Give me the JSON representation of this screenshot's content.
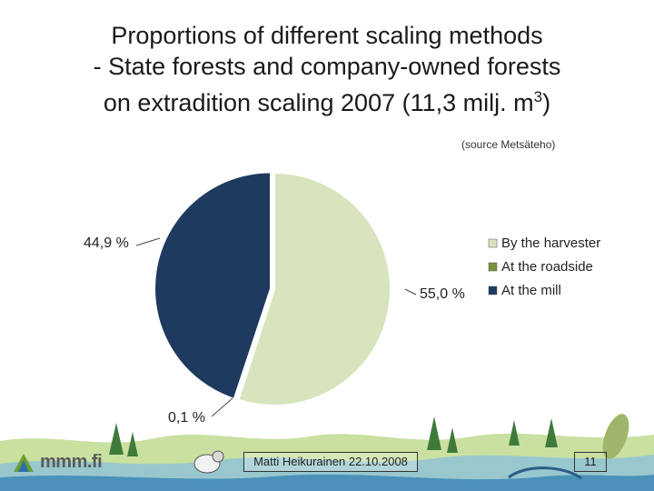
{
  "slide": {
    "title_lines": [
      "Proportions of different scaling methods",
      "- State forests and company-owned forests",
      "on extradition scaling 2007  (11,3 milj. m"
    ],
    "title_superscript": "3",
    "title_suffix": ")",
    "source": "(source Metsäteho)",
    "author_date": "Matti Heikurainen 22.10.2008",
    "page_number": "11",
    "logo_text": "mmm.fi"
  },
  "colors": {
    "harvester": "#d7e4bd",
    "roadside": "#77933c",
    "mill": "#1f3a5f"
  },
  "chart_data": {
    "type": "pie",
    "title": "Proportions of different scaling methods",
    "categories": [
      "By the harvester",
      "At the roadside",
      "At the mill"
    ],
    "values": [
      55.0,
      0.1,
      44.9
    ],
    "data_labels": [
      "55,0 %",
      "0,1 %",
      "44,9 %"
    ],
    "legend": [
      "By the harvester",
      "At the roadside",
      "At the mill"
    ],
    "legend_position": "right"
  }
}
